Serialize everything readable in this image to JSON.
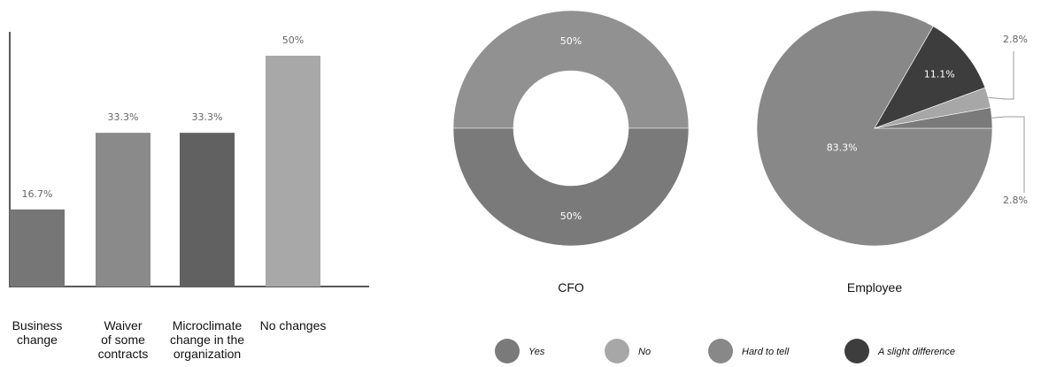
{
  "chart_data": [
    {
      "type": "bar",
      "categories": [
        [
          "Business",
          "change"
        ],
        [
          "Waiver",
          "of some",
          "contracts"
        ],
        [
          "Microclimate",
          "change in the",
          "organization"
        ],
        [
          "No changes"
        ]
      ],
      "values": [
        16.7,
        33.3,
        33.3,
        50
      ],
      "value_labels": [
        "16.7%",
        "33.3%",
        "33.3%",
        "50%"
      ],
      "colors": [
        "#767676",
        "#8a8a8a",
        "#616161",
        "#a8a8a8"
      ],
      "ylim": [
        0,
        50
      ],
      "grid": false
    },
    {
      "type": "pie",
      "variant": "donut",
      "title": "CFO",
      "slices": [
        {
          "name": "No",
          "value": 50,
          "label": "50%",
          "color": "#919191"
        },
        {
          "name": "Yes",
          "value": 50,
          "label": "50%",
          "color": "#7a7a7a"
        }
      ]
    },
    {
      "type": "pie",
      "title": "Employee",
      "slices": [
        {
          "name": "Hard to tell",
          "value": 83.3,
          "label": "83.3%",
          "color": "#888888"
        },
        {
          "name": "A slight difference",
          "value": 11.1,
          "label": "11.1%",
          "color": "#3d3d3d"
        },
        {
          "name": "No",
          "value": 2.8,
          "label": "2.8%",
          "color": "#a7a7a7"
        },
        {
          "name": "Yes",
          "value": 2.8,
          "label": "2.8%",
          "color": "#7a7a7a"
        }
      ]
    }
  ],
  "legend": {
    "position": "bottom",
    "items": [
      {
        "label": "Yes",
        "color": "#7a7a7a"
      },
      {
        "label": "No",
        "color": "#a7a7a7"
      },
      {
        "label": "Hard to tell",
        "color": "#888888"
      },
      {
        "label": "A slight difference",
        "color": "#3d3d3d"
      }
    ]
  }
}
